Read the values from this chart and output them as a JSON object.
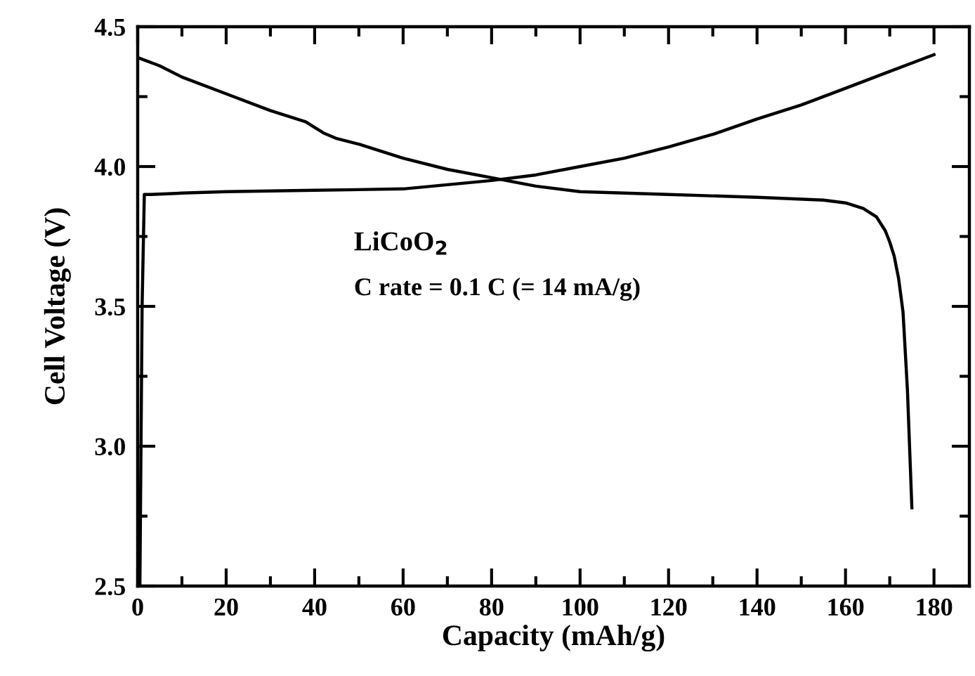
{
  "chart_data": {
    "type": "line",
    "xlabel": "Capacity (mAh/g)",
    "ylabel": "Cell Voltage (V)",
    "annotations": [
      "LiCoO$_{2}$",
      "C rate = 0.1 C (= 14 mA/g)"
    ],
    "xlim": [
      0,
      188
    ],
    "ylim": [
      2.5,
      4.5
    ],
    "xticks": [
      0,
      {
        "value": 10,
        "label": null
      },
      20,
      {
        "value": 30,
        "label": null
      },
      40,
      {
        "value": 50,
        "label": null
      },
      60,
      {
        "value": 70,
        "label": null
      },
      80,
      {
        "value": 90,
        "label": null
      },
      100,
      {
        "value": 110,
        "label": null
      },
      120,
      {
        "value": 130,
        "label": null
      },
      140,
      {
        "value": 150,
        "label": null
      },
      160,
      {
        "value": 170,
        "label": null
      },
      180
    ],
    "yticks": [
      2.5,
      {
        "value": 2.75,
        "label": null
      },
      {
        "value": 3,
        "label": "3.0"
      },
      {
        "value": 3.25,
        "label": null
      },
      3.5,
      {
        "value": 3.75,
        "label": null
      },
      {
        "value": 4,
        "label": "4.0"
      },
      {
        "value": 4.25,
        "label": null
      },
      4.5
    ],
    "grid": false,
    "legend": false,
    "line_style": "solid",
    "marker": "none",
    "series": [
      {
        "color": "#000000",
        "x": [
          0.5,
          1,
          1.5,
          3,
          10,
          20,
          40,
          60,
          70,
          80,
          90,
          100,
          110,
          120,
          130,
          140,
          150,
          160,
          170,
          180
        ],
        "values": [
          2.5,
          3.5,
          3.9,
          3.9,
          3.905,
          3.91,
          3.915,
          3.92,
          3.935,
          3.95,
          3.97,
          4.0,
          4.03,
          4.07,
          4.115,
          4.17,
          4.22,
          4.28,
          4.34,
          4.4
        ]
      },
      {
        "color": "#000000",
        "x": [
          0,
          5,
          10,
          20,
          30,
          38,
          40,
          42,
          45,
          50,
          60,
          70,
          80,
          90,
          100,
          120,
          140,
          155,
          160,
          164,
          167,
          169,
          170,
          171,
          172,
          173,
          174,
          175
        ],
        "values": [
          4.39,
          4.36,
          4.32,
          4.26,
          4.2,
          4.16,
          4.14,
          4.12,
          4.1,
          4.08,
          4.03,
          3.99,
          3.96,
          3.93,
          3.91,
          3.9,
          3.89,
          3.88,
          3.87,
          3.85,
          3.82,
          3.77,
          3.73,
          3.68,
          3.6,
          3.48,
          3.2,
          2.78
        ]
      }
    ]
  }
}
